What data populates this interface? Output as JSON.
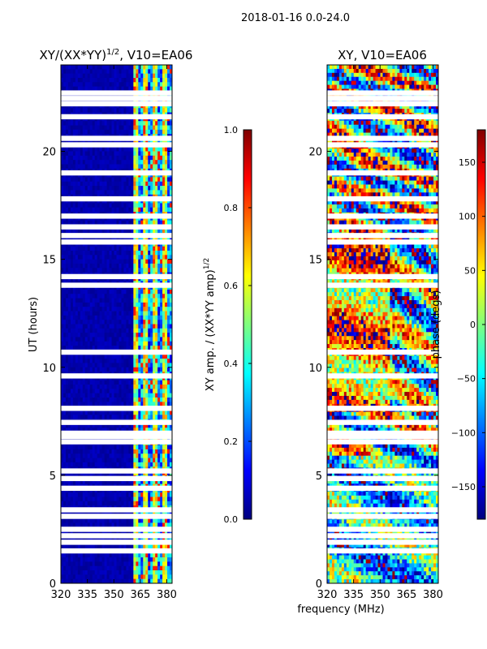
{
  "figure": {
    "suptitle": "2018-01-16 0.0-24.0",
    "shared_xlabel": "frequency (MHz)"
  },
  "colors": {
    "jet_stops": [
      "#00007f",
      "#0000ff",
      "#007fff",
      "#00ffff",
      "#7fff7f",
      "#ffff00",
      "#ff7f00",
      "#ff0000",
      "#7f0000"
    ],
    "gap": "#ffffff"
  },
  "chart_data": [
    {
      "type": "heatmap",
      "id": "amp_ratio",
      "title_main": "XY/(XX*YY)",
      "title_sup": "1/2",
      "title_rest": ", V10=EA06",
      "xlabel": "",
      "ylabel": "UT (hours)",
      "xlim": [
        320,
        383
      ],
      "ylim": [
        0,
        24
      ],
      "xticks": [
        320,
        335,
        350,
        365,
        380
      ],
      "yticks": [
        0,
        5,
        10,
        15,
        20
      ],
      "colorbar": {
        "label_main": "XY amp. / (XX*YY amp)",
        "label_sup": "1/2",
        "range": [
          0.0,
          1.0
        ],
        "ticks": [
          "0.0",
          "0.2",
          "0.4",
          "0.6",
          "0.8",
          "1.0"
        ],
        "tick_values": [
          0.0,
          0.2,
          0.4,
          0.6,
          0.8,
          1.0
        ]
      },
      "bright_band_mhz": [
        361,
        383
      ],
      "gap_hours": [
        1.5,
        1.9,
        2.2,
        2.5,
        3.1,
        3.4,
        4.4,
        4.85,
        5.2,
        6.55,
        6.8,
        6.95,
        7.45,
        8.1,
        9.6,
        10.7,
        13.8,
        14.2,
        15.8,
        16.1,
        16.5,
        17.0,
        17.8,
        19.0,
        20.3,
        20.6,
        21.6,
        22.2,
        22.45,
        22.7
      ]
    },
    {
      "type": "heatmap",
      "id": "phase",
      "title_main": "XY, V10=EA06",
      "xlabel": "",
      "ylabel": "",
      "xlim": [
        320,
        383
      ],
      "ylim": [
        0,
        24
      ],
      "xticks": [
        320,
        335,
        350,
        365,
        380
      ],
      "yticks": [
        0,
        5,
        10,
        15,
        20
      ],
      "colorbar": {
        "label_main": "phase (degs)",
        "range": [
          -180,
          180
        ],
        "ticks": [
          "−150",
          "−100",
          "−50",
          "0",
          "50",
          "100",
          "150"
        ],
        "tick_values": [
          -150,
          -100,
          -50,
          0,
          50,
          100,
          150
        ]
      },
      "gap_hours": [
        1.5,
        1.9,
        2.2,
        2.5,
        3.1,
        3.4,
        4.4,
        4.85,
        5.2,
        6.55,
        6.8,
        6.95,
        7.45,
        8.1,
        9.6,
        10.7,
        13.8,
        14.2,
        15.8,
        16.1,
        16.5,
        17.0,
        17.8,
        19.0,
        20.3,
        20.6,
        21.6,
        22.2,
        22.45,
        22.7
      ]
    }
  ]
}
